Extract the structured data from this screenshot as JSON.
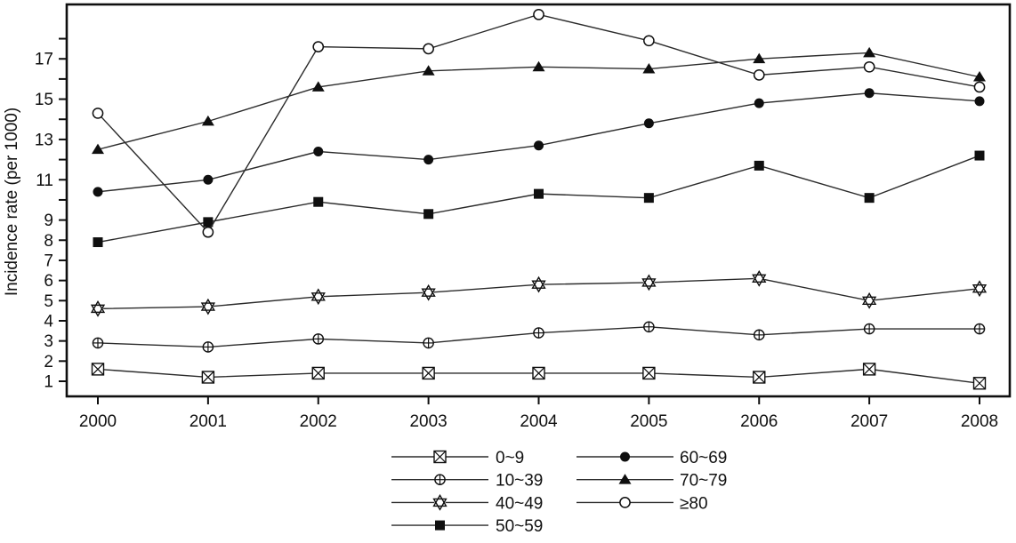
{
  "chart_data": {
    "type": "line",
    "title": "",
    "xlabel": "",
    "ylabel": "Incidence rate (per 1000)",
    "x": [
      2000,
      2001,
      2002,
      2003,
      2004,
      2005,
      2006,
      2007,
      2008
    ],
    "ylim": [
      0.25,
      19.7
    ],
    "y_ticks_labeled": [
      1,
      2,
      3,
      4,
      5,
      6,
      7,
      8,
      9,
      11,
      13,
      15,
      17
    ],
    "y_ticks_minor": [
      10,
      12,
      14,
      16,
      18
    ],
    "grid": false,
    "legend_position": "bottom-center-two-columns",
    "line_color": "#2b2b2b",
    "ink_color": "#0f0f0f",
    "series": [
      {
        "name": "0~9",
        "marker": "crossed-square",
        "values": [
          1.6,
          1.2,
          1.4,
          1.4,
          1.4,
          1.4,
          1.2,
          1.6,
          0.9
        ]
      },
      {
        "name": "10~39",
        "marker": "circle-plus",
        "values": [
          2.9,
          2.7,
          3.1,
          2.9,
          3.4,
          3.7,
          3.3,
          3.6,
          3.6
        ]
      },
      {
        "name": "40~49",
        "marker": "star-of-david",
        "values": [
          4.6,
          4.7,
          5.2,
          5.4,
          5.8,
          5.9,
          6.1,
          5.0,
          5.6
        ]
      },
      {
        "name": "50~59",
        "marker": "filled-square",
        "values": [
          7.9,
          8.9,
          9.9,
          9.3,
          10.3,
          10.1,
          11.7,
          10.1,
          12.2
        ]
      },
      {
        "name": "60~69",
        "marker": "filled-circle",
        "values": [
          10.4,
          11.0,
          12.4,
          12.0,
          12.7,
          13.8,
          14.8,
          15.3,
          14.9
        ]
      },
      {
        "name": "70~79",
        "marker": "filled-triangle",
        "values": [
          12.5,
          13.9,
          15.6,
          16.4,
          16.6,
          16.5,
          17.0,
          17.3,
          16.1
        ]
      },
      {
        "name": "≥80",
        "marker": "open-circle",
        "values": [
          14.3,
          8.4,
          17.6,
          17.5,
          19.2,
          17.9,
          16.2,
          16.6,
          15.6
        ]
      }
    ],
    "legend_columns": [
      [
        "0~9",
        "10~39",
        "40~49",
        "50~59"
      ],
      [
        "60~69",
        "70~79",
        "≥80"
      ]
    ]
  }
}
